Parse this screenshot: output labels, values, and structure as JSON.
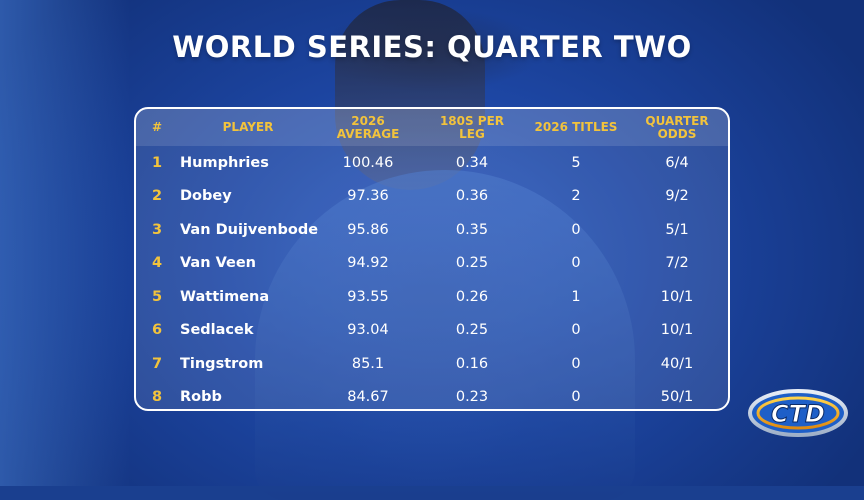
{
  "title": "WORLD SERIES: QUARTER TWO",
  "table": {
    "headers": {
      "rank": "#",
      "player": "PLAYER",
      "average_line1": "2026",
      "average_line2": "AVERAGE",
      "per_leg_line1": "180S PER",
      "per_leg_line2": "LEG",
      "titles": "2026 TITLES",
      "odds_line1": "QUARTER",
      "odds_line2": "ODDS"
    },
    "rows": [
      {
        "rank": "1",
        "player": "Humphries",
        "average": "100.46",
        "per_leg": "0.34",
        "titles": "5",
        "odds": "6/4"
      },
      {
        "rank": "2",
        "player": "Dobey",
        "average": "97.36",
        "per_leg": "0.36",
        "titles": "2",
        "odds": "9/2"
      },
      {
        "rank": "3",
        "player": "Van Duijvenbode",
        "average": "95.86",
        "per_leg": "0.35",
        "titles": "0",
        "odds": "5/1"
      },
      {
        "rank": "4",
        "player": "Van Veen",
        "average": "94.92",
        "per_leg": "0.25",
        "titles": "0",
        "odds": "7/2"
      },
      {
        "rank": "5",
        "player": "Wattimena",
        "average": "93.55",
        "per_leg": "0.26",
        "titles": "1",
        "odds": "10/1"
      },
      {
        "rank": "6",
        "player": "Sedlacek",
        "average": "93.04",
        "per_leg": "0.25",
        "titles": "0",
        "odds": "10/1"
      },
      {
        "rank": "7",
        "player": "Tingstrom",
        "average": "85.1",
        "per_leg": "0.16",
        "titles": "0",
        "odds": "40/1"
      },
      {
        "rank": "8",
        "player": "Robb",
        "average": "84.67",
        "per_leg": "0.23",
        "titles": "0",
        "odds": "50/1"
      }
    ]
  },
  "logo": {
    "text": "CTD"
  },
  "colors": {
    "accent": "#f2c33c",
    "background": "#1d46a3",
    "text": "#ffffff"
  }
}
